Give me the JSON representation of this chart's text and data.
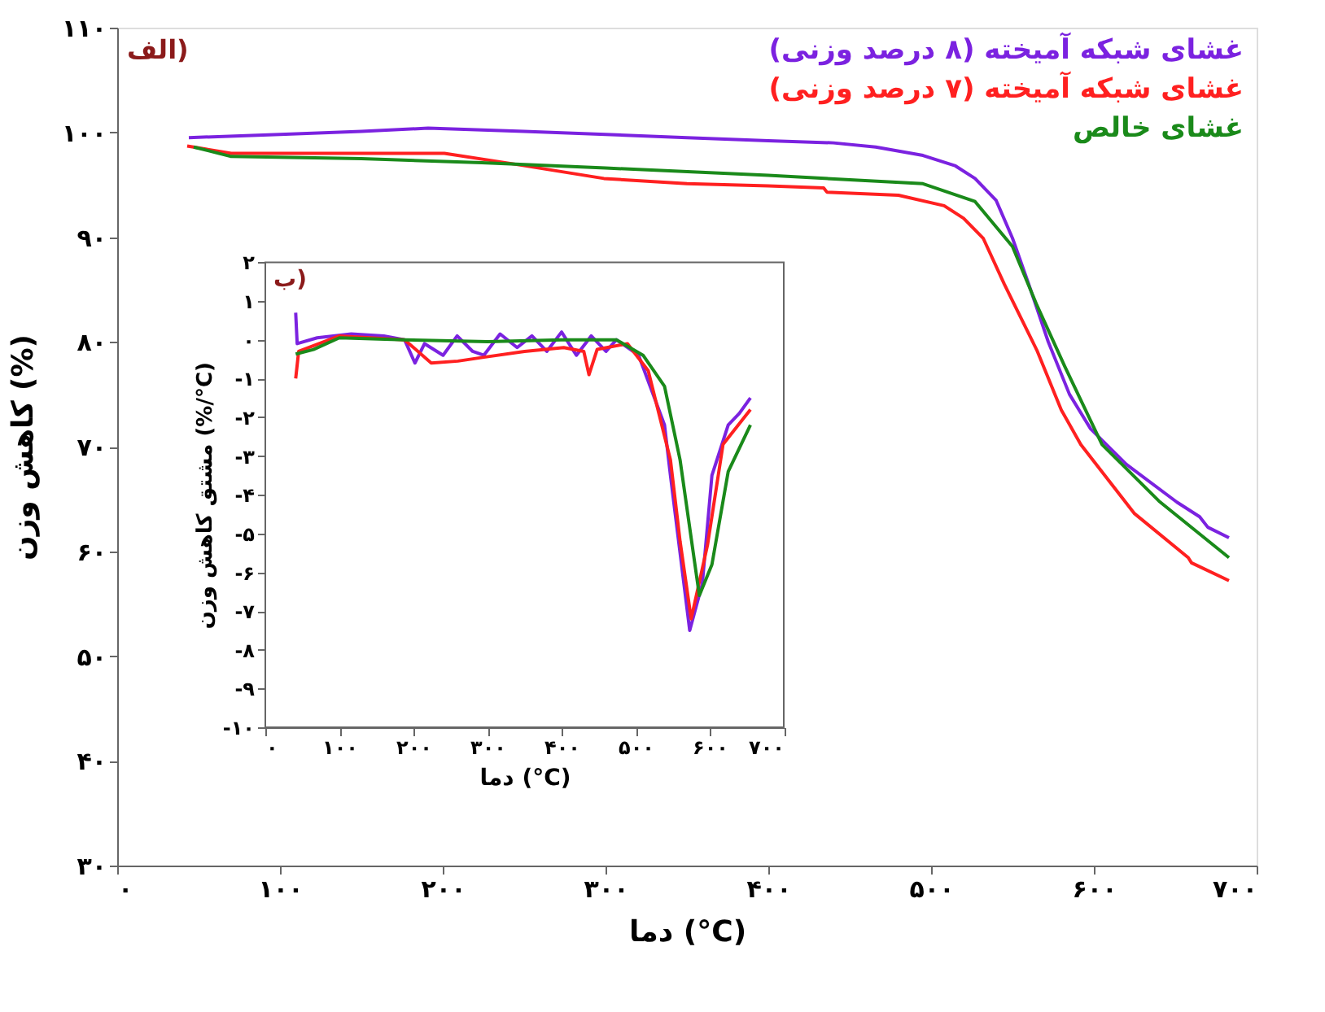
{
  "chart_data": [
    {
      "type": "line",
      "xlabel": "دما (°C)",
      "ylabel": "کاهش وزن (%)",
      "legend": "top right",
      "grid": false,
      "annotations": [
        "الف)"
      ],
      "xlim": [
        0,
        700
      ],
      "xticks": [
        {
          "value": 0,
          "label": "۰"
        },
        {
          "value": 100,
          "label": "۱۰۰"
        },
        {
          "value": 200,
          "label": "۲۰۰"
        },
        {
          "value": 300,
          "label": "۳۰۰"
        },
        {
          "value": 400,
          "label": "۴۰۰"
        },
        {
          "value": 500,
          "label": "۵۰۰"
        },
        {
          "value": 600,
          "label": "۶۰۰"
        },
        {
          "value": 700,
          "label": "۷۰۰"
        }
      ],
      "ylim": [
        30,
        110
      ],
      "yticks": [
        {
          "value": 30,
          "label": "۳۰"
        },
        {
          "value": 40,
          "label": "۴۰"
        },
        {
          "value": 50,
          "label": "۵۰"
        },
        {
          "value": 60,
          "label": "۶۰"
        },
        {
          "value": 70,
          "label": "۷۰"
        },
        {
          "value": 80,
          "label": "۸۰"
        },
        {
          "value": 90,
          "label": "۹۰"
        },
        {
          "value": 100,
          "label": "۱۰۰"
        },
        {
          "value": 110,
          "label": "۱۱۰"
        }
      ],
      "series": [
        {
          "name": "غشای شبکه آمیخته (۸ درصد وزنی)",
          "color": "#7b22e0",
          "x": [
            44,
            100,
            150,
            191,
            250,
            300,
            350,
            400,
            440,
            466,
            495,
            515,
            527,
            540,
            550,
            560,
            572,
            585,
            598,
            620,
            651,
            665,
            670,
            683
          ],
          "values": [
            99.5,
            99.8,
            100.1,
            100.4,
            100.1,
            99.8,
            99.5,
            99.2,
            99.0,
            98.6,
            97.8,
            96.8,
            95.6,
            93.5,
            89.9,
            85.5,
            80,
            75,
            71.7,
            68.3,
            64.7,
            63.3,
            62.3,
            61.3
          ]
        },
        {
          "name": "غشای شبکه آمیخته (۷ درصد وزنی)",
          "color": "#ff2020",
          "x": [
            43,
            70,
            150,
            201,
            243,
            299,
            350,
            400,
            434,
            436,
            480,
            508,
            520,
            532,
            545,
            565,
            580,
            592,
            625,
            658,
            660,
            683
          ],
          "values": [
            98.7,
            98.0,
            98.0,
            98.0,
            97.0,
            95.6,
            95.1,
            94.9,
            94.7,
            94.3,
            94.0,
            93.0,
            91.8,
            89.9,
            85.5,
            79.2,
            73.5,
            70.2,
            63.6,
            59.4,
            58.9,
            57.2
          ]
        },
        {
          "name": "غشای خالص",
          "color": "#1a8a1a",
          "x": [
            47,
            70,
            150,
            224,
            300,
            400,
            495,
            527,
            550,
            565,
            582,
            605,
            640,
            683
          ],
          "values": [
            98.6,
            97.7,
            97.5,
            97.1,
            96.6,
            95.9,
            95.1,
            93.4,
            89.1,
            83.5,
            77.7,
            70.2,
            64.8,
            59.4
          ]
        }
      ]
    },
    {
      "type": "line",
      "xlabel": "دما (°C)",
      "ylabel": "مشتق کاهش وزن (%/°C)",
      "grid": false,
      "annotations": [
        "ب)"
      ],
      "xlim": [
        0,
        700
      ],
      "xticks": [
        {
          "value": 0,
          "label": "۰"
        },
        {
          "value": 100,
          "label": "۱۰۰"
        },
        {
          "value": 200,
          "label": "۲۰۰"
        },
        {
          "value": 300,
          "label": "۳۰۰"
        },
        {
          "value": 400,
          "label": "۴۰۰"
        },
        {
          "value": 500,
          "label": "۵۰۰"
        },
        {
          "value": 600,
          "label": "۶۰۰"
        },
        {
          "value": 700,
          "label": "۷۰۰"
        }
      ],
      "ylim": [
        -10,
        2
      ],
      "yticks": [
        {
          "value": -10,
          "label": "-۱۰"
        },
        {
          "value": -9,
          "label": "-۹"
        },
        {
          "value": -8,
          "label": "-۸"
        },
        {
          "value": -7,
          "label": "-۷"
        },
        {
          "value": -6,
          "label": "-۶"
        },
        {
          "value": -5,
          "label": "-۵"
        },
        {
          "value": -4,
          "label": "-۴"
        },
        {
          "value": -3,
          "label": "-۳"
        },
        {
          "value": -2,
          "label": "-۲"
        },
        {
          "value": -1,
          "label": "-۱"
        },
        {
          "value": 0,
          "label": "۰"
        },
        {
          "value": 1,
          "label": "۱"
        },
        {
          "value": 2,
          "label": "۲"
        }
      ],
      "series": [
        {
          "color": "#7b22e0",
          "x": [
            41,
            43,
            70,
            116,
            160,
            188,
            202,
            215,
            240,
            259,
            280,
            295,
            317,
            340,
            360,
            380,
            400,
            420,
            440,
            460,
            474,
            504,
            539,
            547,
            560,
            573,
            590,
            603,
            625,
            640,
            655
          ],
          "values": [
            0.7,
            -0.1,
            0.05,
            0.15,
            0.1,
            0.0,
            -0.6,
            -0.1,
            -0.4,
            0.1,
            -0.3,
            -0.4,
            0.15,
            -0.2,
            0.1,
            -0.3,
            0.2,
            -0.4,
            0.1,
            -0.3,
            0.0,
            -0.4,
            -2.2,
            -3.5,
            -5.5,
            -7.5,
            -6.3,
            -3.5,
            -2.2,
            -1.9,
            -1.5
          ]
        },
        {
          "color": "#ff2020",
          "x": [
            41,
            45,
            100,
            188,
            224,
            260,
            295,
            350,
            403,
            430,
            437,
            448,
            489,
            517,
            547,
            560,
            575,
            597,
            618,
            655
          ],
          "values": [
            -1.0,
            -0.3,
            0.1,
            0.0,
            -0.6,
            -0.55,
            -0.45,
            -0.3,
            -0.2,
            -0.3,
            -0.9,
            -0.25,
            -0.1,
            -0.8,
            -3.1,
            -5.2,
            -7.2,
            -5.3,
            -2.7,
            -1.8
          ]
        },
        {
          "color": "#1a8a1a",
          "x": [
            41,
            65,
            100,
            188,
            300,
            400,
            474,
            510,
            539,
            560,
            586,
            603,
            625,
            655
          ],
          "values": [
            -0.37,
            -0.25,
            0.05,
            0.0,
            -0.05,
            0.0,
            0.0,
            -0.4,
            -1.2,
            -3.1,
            -6.6,
            -5.8,
            -3.4,
            -2.2
          ]
        }
      ]
    }
  ]
}
